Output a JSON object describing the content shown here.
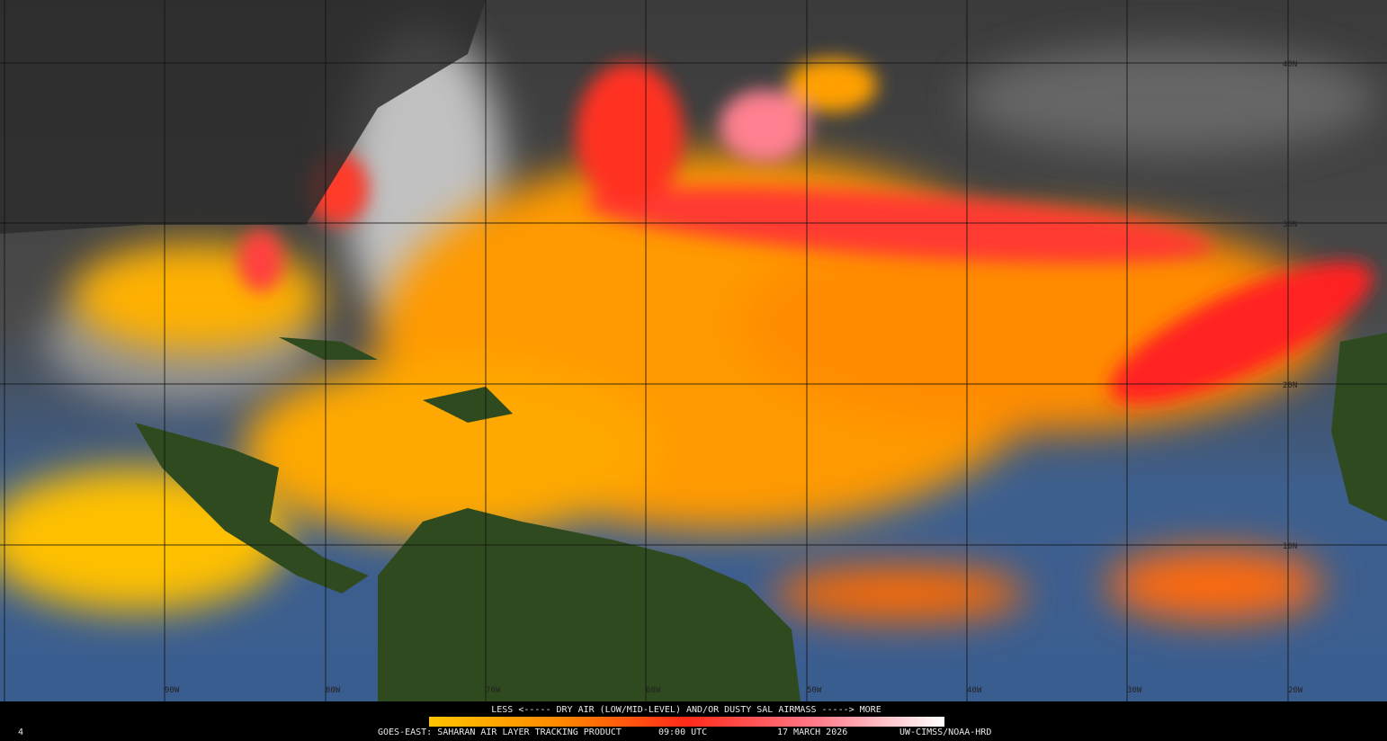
{
  "map": {
    "lat_labels": [
      "40N",
      "30N",
      "20N",
      "10N"
    ],
    "lon_labels": [
      "90W",
      "80W",
      "70W",
      "60W",
      "50W",
      "40W",
      "30W",
      "20W"
    ]
  },
  "legend": {
    "caption": "LESS <----- DRY AIR (LOW/MID-LEVEL) AND/OR DUSTY SAL AIRMASS -----> MORE"
  },
  "footer": {
    "product": "GOES-EAST: SAHARAN AIR LAYER TRACKING PRODUCT",
    "time": "09:00 UTC",
    "date": "17 MARCH 2026",
    "credit": "UW-CIMSS/NOAA-HRD"
  },
  "corner_label": "4"
}
